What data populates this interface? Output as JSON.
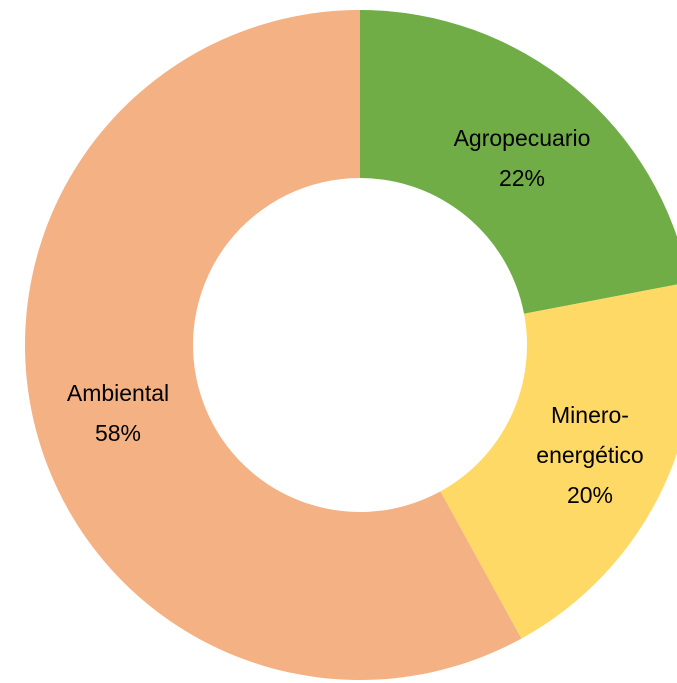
{
  "chart_data": {
    "type": "donut",
    "categories": [
      "Agropecuario",
      "Minero-\nenergético",
      "Ambiental"
    ],
    "values": [
      22,
      20,
      58
    ],
    "value_labels": [
      "22%",
      "20%",
      "58%"
    ],
    "colors": [
      "#70ad47",
      "#ffd966",
      "#f4b183"
    ]
  }
}
